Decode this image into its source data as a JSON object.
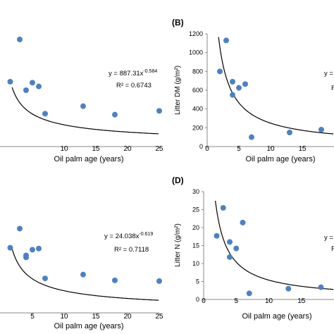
{
  "colors": {
    "point": "#4F81BD",
    "curve": "#000000",
    "axis": "#888888"
  },
  "chart_data": [
    {
      "panel": "A",
      "type": "scatter",
      "panel_label": "",
      "xlabel": "Oil palm age (years)",
      "ylabel": "",
      "xlim": [
        -2,
        25
      ],
      "ylim": [
        0,
        1200
      ],
      "xticks": [
        "10",
        "15",
        "20",
        "25"
      ],
      "yticks": [],
      "points": [
        {
          "x": 1.5,
          "y": 690
        },
        {
          "x": 3,
          "y": 1140
        },
        {
          "x": 4,
          "y": 600
        },
        {
          "x": 5,
          "y": 680
        },
        {
          "x": 6,
          "y": 640
        },
        {
          "x": 7,
          "y": 350
        },
        {
          "x": 13,
          "y": 430
        },
        {
          "x": 18,
          "y": 340
        },
        {
          "x": 25,
          "y": 380
        }
      ],
      "fit": {
        "a": 887.31,
        "b": -0.584
      },
      "equation": "y = 887.31x",
      "exponent": "-0.584",
      "r2": "R² = 0.6743"
    },
    {
      "panel": "B",
      "type": "scatter",
      "panel_label": "(B)",
      "xlabel": "Oil palm age (years)",
      "ylabel": "Litter DM (g/m²)",
      "xlim": [
        0,
        20
      ],
      "ylim": [
        0,
        1200
      ],
      "xticks": [
        "0",
        "5",
        "10",
        "15"
      ],
      "yticks": [
        "0",
        "200",
        "400",
        "600",
        "800",
        "1000",
        "1200"
      ],
      "points": [
        {
          "x": 2,
          "y": 800
        },
        {
          "x": 3,
          "y": 1130
        },
        {
          "x": 4,
          "y": 690
        },
        {
          "x": 4,
          "y": 550
        },
        {
          "x": 5,
          "y": 625
        },
        {
          "x": 6,
          "y": 665
        },
        {
          "x": 7,
          "y": 100
        },
        {
          "x": 13,
          "y": 150
        },
        {
          "x": 18,
          "y": 180
        }
      ],
      "fit": {
        "a": 1980,
        "b": -0.9
      },
      "equation": "y =",
      "r2": "R"
    },
    {
      "panel": "C",
      "type": "scatter",
      "panel_label": "",
      "xlabel": "Oil palm age (years)",
      "ylabel": "",
      "xlim": [
        -2,
        25
      ],
      "ylim": [
        0,
        30
      ],
      "xticks": [
        "5",
        "10",
        "15",
        "20",
        "25"
      ],
      "yticks": [],
      "points": [
        {
          "x": 1.5,
          "y": 17
        },
        {
          "x": 3,
          "y": 22
        },
        {
          "x": 4,
          "y": 15
        },
        {
          "x": 4,
          "y": 14.5
        },
        {
          "x": 5,
          "y": 16.5
        },
        {
          "x": 6,
          "y": 16.8
        },
        {
          "x": 7,
          "y": 9
        },
        {
          "x": 13,
          "y": 10
        },
        {
          "x": 18,
          "y": 8.5
        },
        {
          "x": 25,
          "y": 8.3
        }
      ],
      "fit": {
        "a": 24.038,
        "b": -0.619
      },
      "equation": "y = 24.038x",
      "exponent": "-0.619",
      "r2": "R² = 0.7118"
    },
    {
      "panel": "D",
      "type": "scatter",
      "panel_label": "(D)",
      "xlabel": "Oil palm age (years)",
      "ylabel": "Litter N (g/m²)",
      "xlim": [
        0,
        20
      ],
      "ylim": [
        0,
        30
      ],
      "xticks": [
        "0",
        "5",
        "10",
        "15"
      ],
      "yticks": [
        "0",
        "5",
        "10",
        "15",
        "20",
        "25",
        "30"
      ],
      "points": [
        {
          "x": 2,
          "y": 17.7
        },
        {
          "x": 3,
          "y": 25.5
        },
        {
          "x": 4,
          "y": 16
        },
        {
          "x": 4,
          "y": 11.8
        },
        {
          "x": 5,
          "y": 14.2
        },
        {
          "x": 6,
          "y": 21.4
        },
        {
          "x": 7,
          "y": 1.7
        },
        {
          "x": 13,
          "y": 3
        },
        {
          "x": 18,
          "y": 3.4
        }
      ],
      "fit": {
        "a": 48,
        "b": -0.95
      },
      "equation": "y =",
      "r2": "R"
    }
  ]
}
